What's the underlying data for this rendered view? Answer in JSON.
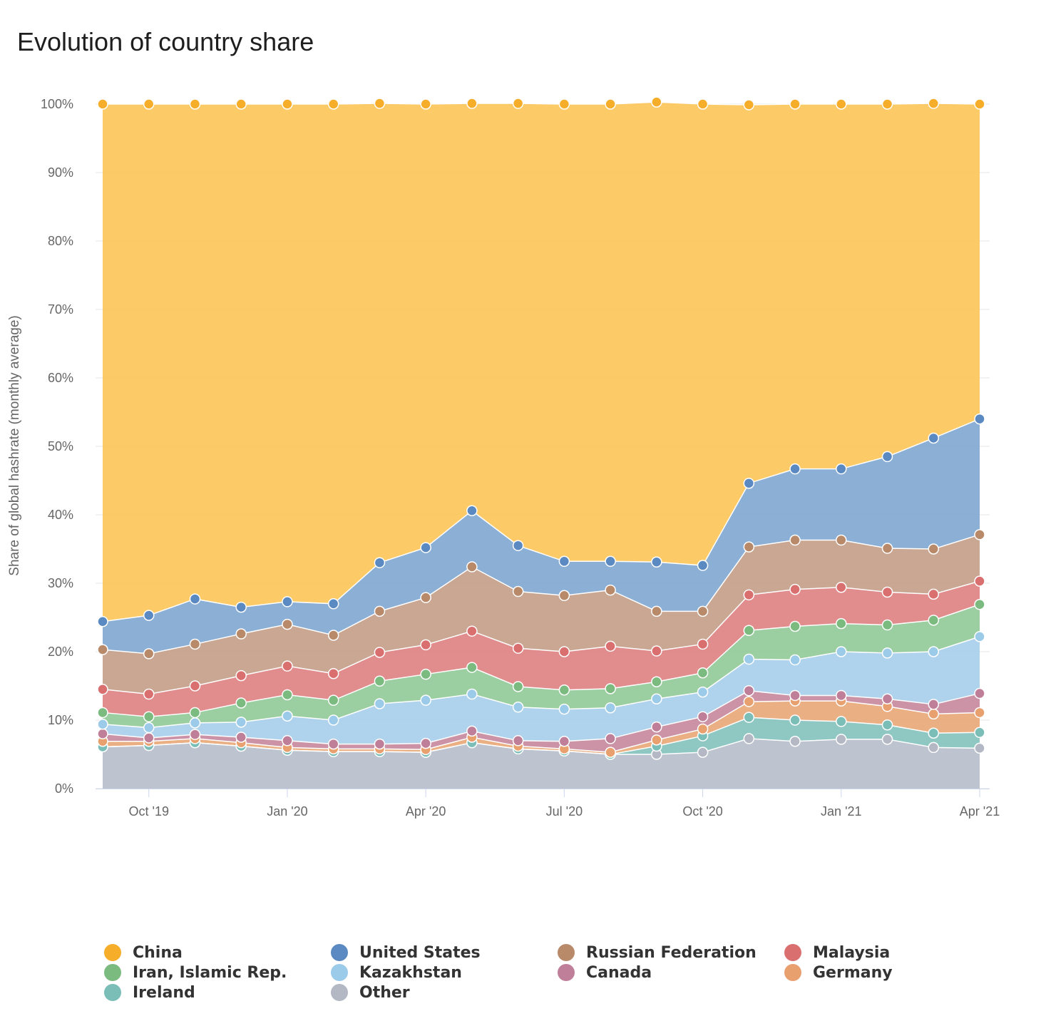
{
  "title": "Evolution of country share",
  "chart_data": {
    "type": "area",
    "stacked": true,
    "title": "Evolution of country share",
    "ylabel": "Share of global hashrate (monthly average)",
    "xlabel": "",
    "ylim": [
      0,
      100
    ],
    "y_ticks": [
      "0%",
      "10%",
      "20%",
      "30%",
      "40%",
      "50%",
      "60%",
      "70%",
      "80%",
      "90%",
      "100%"
    ],
    "x_ticks": [
      "Oct '19",
      "Jan '20",
      "Apr '20",
      "Jul '20",
      "Oct '20",
      "Jan '21",
      "Apr '21"
    ],
    "x_tick_index": [
      1,
      4,
      7,
      10,
      13,
      16,
      19
    ],
    "x": [
      "2019-09",
      "2019-10",
      "2019-11",
      "2019-12",
      "2020-01",
      "2020-02",
      "2020-03",
      "2020-04",
      "2020-05",
      "2020-06",
      "2020-07",
      "2020-08",
      "2020-09",
      "2020-10",
      "2020-11",
      "2020-12",
      "2021-01",
      "2021-02",
      "2021-03",
      "2021-04"
    ],
    "grid": true,
    "legend_position": "bottom",
    "series": [
      {
        "name": "Other",
        "color": "#b9bfcb",
        "values": [
          6.1,
          6.3,
          6.7,
          6.2,
          5.6,
          5.4,
          5.4,
          5.3,
          6.7,
          5.8,
          5.5,
          5.0,
          5.0,
          5.3,
          7.3,
          6.9,
          7.2,
          7.2,
          6.0,
          5.9
        ]
      },
      {
        "name": "Ireland",
        "color": "#86c2bd",
        "values": [
          0.0,
          0.0,
          0.0,
          0.0,
          0.0,
          0.0,
          0.0,
          0.0,
          0.0,
          0.0,
          0.0,
          0.0,
          1.2,
          2.4,
          3.1,
          3.1,
          2.6,
          2.1,
          2.1,
          2.3
        ]
      },
      {
        "name": "Germany",
        "color": "#e8a878",
        "values": [
          0.8,
          0.6,
          0.6,
          0.5,
          0.4,
          0.4,
          0.4,
          0.4,
          0.8,
          0.4,
          0.3,
          0.3,
          0.9,
          1.0,
          2.3,
          2.8,
          3.0,
          2.7,
          2.8,
          2.9
        ]
      },
      {
        "name": "Canada",
        "color": "#c88a9f",
        "values": [
          1.1,
          0.5,
          0.6,
          0.8,
          1.0,
          0.7,
          0.7,
          0.9,
          0.9,
          0.8,
          1.1,
          2.0,
          1.9,
          1.8,
          1.6,
          0.8,
          0.8,
          1.1,
          1.4,
          2.8
        ]
      },
      {
        "name": "Kazakhstan",
        "color": "#a9cfec",
        "values": [
          1.4,
          1.5,
          1.7,
          2.2,
          3.6,
          3.5,
          5.9,
          6.3,
          5.4,
          4.9,
          4.7,
          4.5,
          4.1,
          3.6,
          4.6,
          5.2,
          6.4,
          6.7,
          7.7,
          8.3
        ]
      },
      {
        "name": "Iran, Islamic Rep.",
        "color": "#93ca98",
        "values": [
          1.7,
          1.6,
          1.5,
          2.8,
          3.1,
          2.9,
          3.3,
          3.8,
          3.9,
          3.0,
          2.8,
          2.8,
          2.5,
          2.8,
          4.2,
          4.9,
          4.1,
          4.1,
          4.6,
          4.7
        ]
      },
      {
        "name": "Malaysia",
        "color": "#de8383",
        "values": [
          3.4,
          3.3,
          3.9,
          4.0,
          4.2,
          3.9,
          4.2,
          4.3,
          5.3,
          5.6,
          5.6,
          6.2,
          4.5,
          4.2,
          5.2,
          5.4,
          5.3,
          4.8,
          3.8,
          3.4
        ]
      },
      {
        "name": "Russian Federation",
        "color": "#c4a08a",
        "values": [
          5.8,
          5.9,
          6.1,
          6.1,
          6.1,
          5.6,
          6.0,
          6.9,
          9.4,
          8.3,
          8.2,
          8.2,
          5.8,
          4.8,
          7.0,
          7.2,
          6.9,
          6.4,
          6.6,
          6.8
        ]
      },
      {
        "name": "United States",
        "color": "#82a8d1",
        "values": [
          4.1,
          5.6,
          6.6,
          3.9,
          3.3,
          4.6,
          7.1,
          7.3,
          8.2,
          6.7,
          5.0,
          4.2,
          7.2,
          6.7,
          9.3,
          10.4,
          10.4,
          13.4,
          16.2,
          16.9
        ]
      },
      {
        "name": "China",
        "color": "#fcc659",
        "values": [
          75.6,
          74.7,
          72.3,
          73.5,
          72.7,
          73.0,
          67.1,
          64.8,
          59.5,
          64.6,
          66.8,
          66.8,
          67.2,
          67.4,
          55.3,
          53.3,
          53.3,
          51.5,
          48.9,
          46.0
        ]
      }
    ],
    "marker_colors": {
      "China": "#f5ad2a",
      "United States": "#5b89c1",
      "Russian Federation": "#b88a6a",
      "Malaysia": "#d96f6f",
      "Iran, Islamic Rep.": "#7bbb80",
      "Kazakhstan": "#9ccbea",
      "Canada": "#bf7f98",
      "Germany": "#e8a06f",
      "Ireland": "#7bbdb7",
      "Other": "#b3b8c4"
    }
  },
  "legend": [
    {
      "name": "China",
      "color": "#f5ad2a",
      "icon": "circle-icon"
    },
    {
      "name": "United States",
      "color": "#5b89c1",
      "icon": "circle-icon"
    },
    {
      "name": "Russian Federation",
      "color": "#b88a6a",
      "icon": "circle-icon"
    },
    {
      "name": "Malaysia",
      "color": "#d96f6f",
      "icon": "circle-icon"
    },
    {
      "name": "Iran, Islamic Rep.",
      "color": "#7bbb80",
      "icon": "circle-icon"
    },
    {
      "name": "Kazakhstan",
      "color": "#9ccbea",
      "icon": "circle-icon"
    },
    {
      "name": "Canada",
      "color": "#bf7f98",
      "icon": "circle-icon"
    },
    {
      "name": "Germany",
      "color": "#e8a06f",
      "icon": "circle-icon"
    },
    {
      "name": "Ireland",
      "color": "#7bbdb7",
      "icon": "circle-icon"
    },
    {
      "name": "Other",
      "color": "#b3b8c4",
      "icon": "circle-icon"
    }
  ]
}
